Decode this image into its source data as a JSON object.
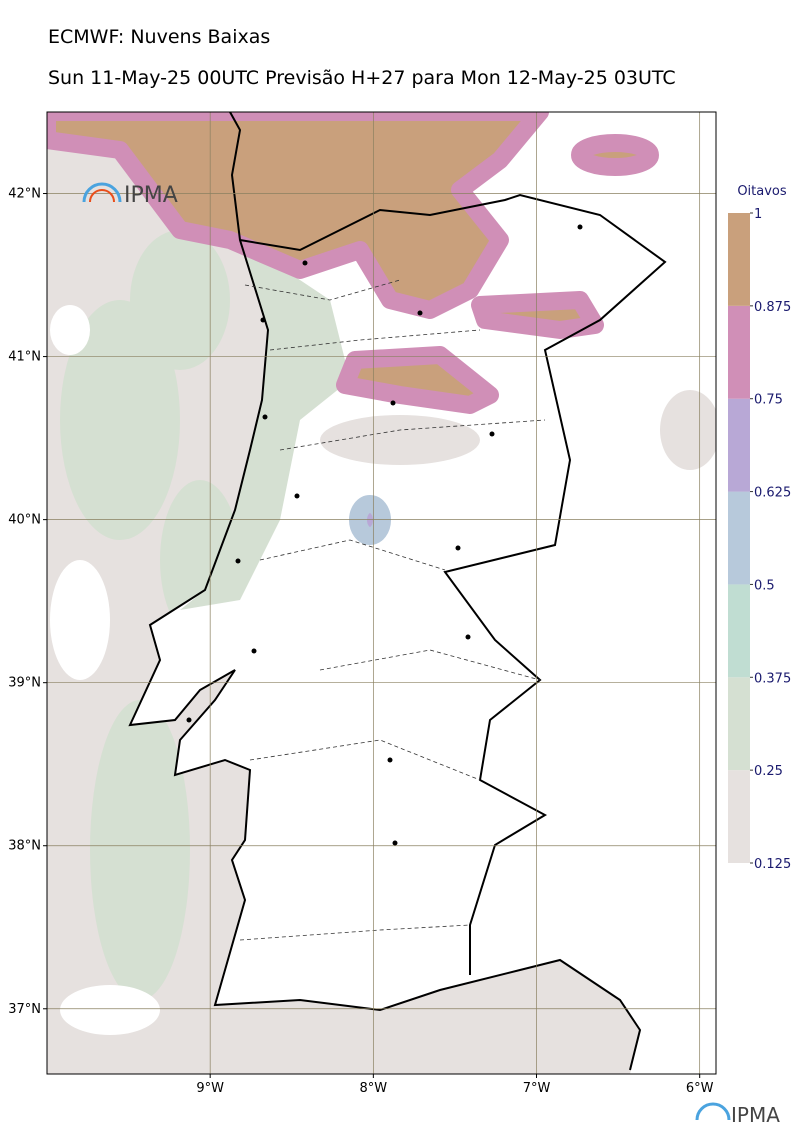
{
  "header": {
    "title": "ECMWF: Nuvens Baixas",
    "subtitle": "Sun 11-May-25 00UTC Previsão H+27 para Mon 12-May-25 03UTC"
  },
  "map": {
    "lon_lim": [
      -10,
      -5.9
    ],
    "lat_lim": [
      36.6,
      42.5
    ],
    "lat_ticks": [
      {
        "value": 42,
        "label": "42°N"
      },
      {
        "value": 41,
        "label": "41°N"
      },
      {
        "value": 40,
        "label": "40°N"
      },
      {
        "value": 39,
        "label": "39°N"
      },
      {
        "value": 38,
        "label": "38°N"
      },
      {
        "value": 37,
        "label": "37°N"
      }
    ],
    "lon_ticks": [
      {
        "value": -9,
        "label": "9°W"
      },
      {
        "value": -8,
        "label": "8°W"
      },
      {
        "value": -7,
        "label": "7°W"
      },
      {
        "value": -6,
        "label": "6°W"
      }
    ],
    "logo": "IPMA"
  },
  "colorbar": {
    "title": "Oitavos",
    "ticks": [
      0.125,
      0.25,
      0.375,
      0.5,
      0.625,
      0.75,
      0.875,
      1
    ],
    "colors": [
      "#e6e1df",
      "#d5e0d2",
      "#c0ddd2",
      "#b7c9db",
      "#b8a8d6",
      "#d08fb7",
      "#c9a07c"
    ]
  },
  "footer": {
    "logo": "IPMA"
  }
}
